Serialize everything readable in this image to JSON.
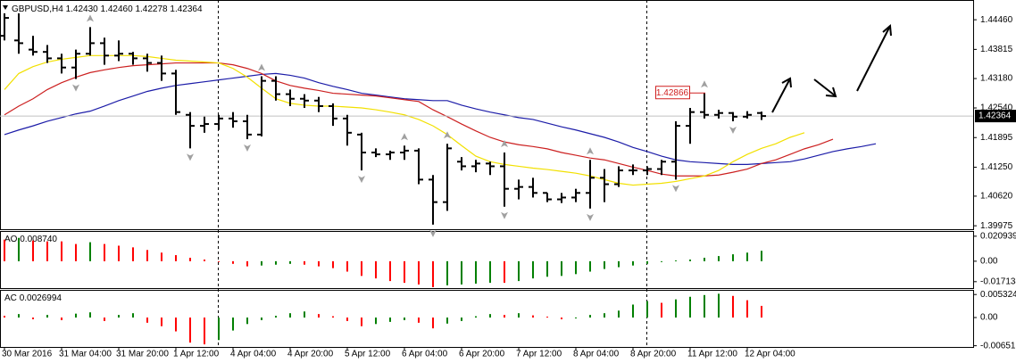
{
  "chart_data": [
    {
      "type": "ohlc",
      "symbol": "GBPUSD,H4",
      "last_labels": {
        "open": "1.42430",
        "high": "1.42460",
        "low": "1.42278",
        "close": "1.42364"
      },
      "categories": [
        "30 Mar 2016",
        null,
        null,
        null,
        "31 Mar 04:00",
        null,
        null,
        null,
        "31 Mar 20:00",
        null,
        null,
        null,
        "1 Apr 12:00",
        null,
        null,
        null,
        "4 Apr 04:00",
        null,
        null,
        null,
        "4 Apr 20:00",
        null,
        null,
        null,
        "5 Apr 12:00",
        null,
        null,
        null,
        "6 Apr 04:00",
        null,
        null,
        null,
        "6 Apr 20:00",
        null,
        null,
        null,
        "7 Apr 12:00",
        null,
        null,
        null,
        "8 Apr 04:00",
        null,
        null,
        null,
        "8 Apr 20:00",
        null,
        null,
        null,
        "11 Apr 12:00",
        null,
        null,
        null,
        "12 Apr 04:00",
        null,
        null,
        null,
        null,
        null,
        null,
        null,
        null,
        null
      ],
      "open": [
        1.4411,
        1.4401,
        1.4381,
        1.4376,
        1.4362,
        1.4342,
        1.4372,
        1.4395,
        1.4368,
        1.4372,
        1.4362,
        1.4352,
        1.4329,
        1.4239,
        1.4215,
        1.4219,
        1.4231,
        1.4225,
        1.4196,
        1.4313,
        1.4284,
        1.4274,
        1.427,
        1.4258,
        1.4231,
        1.4196,
        1.4157,
        1.4153,
        1.4157,
        1.4161,
        1.4098,
        1.4049,
        1.4137,
        1.4127,
        1.4133,
        1.4127,
        1.4078,
        1.4082,
        1.4069,
        1.4055,
        1.4059,
        1.4069,
        1.4102,
        1.4088,
        1.4118,
        1.4118,
        1.4121,
        1.4137,
        1.4215,
        1.4245,
        1.4239,
        1.4243,
        1.4235,
        1.4243,
        null,
        null,
        null,
        null,
        null,
        null,
        null,
        null
      ],
      "high": [
        1.446,
        1.446,
        1.4411,
        1.4391,
        1.4372,
        1.4381,
        1.443,
        1.4407,
        1.4401,
        1.4376,
        1.4372,
        1.4368,
        1.4337,
        1.4245,
        1.4235,
        1.4239,
        1.4245,
        1.4239,
        1.4323,
        1.4323,
        1.4294,
        1.4284,
        1.4278,
        1.4264,
        1.4239,
        1.42,
        1.4166,
        1.4161,
        1.4172,
        1.4166,
        1.4108,
        1.4176,
        1.4147,
        1.4141,
        1.4137,
        1.4157,
        1.4098,
        1.4102,
        1.4069,
        1.4069,
        1.4078,
        1.4141,
        1.4121,
        1.4127,
        1.4131,
        1.4127,
        1.4141,
        1.4225,
        1.4254,
        1.42866,
        1.425,
        1.4245,
        1.4247,
        1.4246,
        null,
        null,
        null,
        null,
        null,
        null,
        null,
        null
      ],
      "low": [
        1.4401,
        1.4372,
        1.4368,
        1.4352,
        1.4329,
        1.4317,
        1.4368,
        1.4348,
        1.4356,
        1.4348,
        1.4333,
        1.4313,
        1.4239,
        1.4166,
        1.42,
        1.4206,
        1.4211,
        1.4186,
        1.4192,
        1.427,
        1.4258,
        1.4254,
        1.4245,
        1.4215,
        1.4172,
        1.4118,
        1.4147,
        1.4141,
        1.4141,
        1.4088,
        1.4,
        1.403,
        1.4118,
        1.4114,
        1.4108,
        1.4039,
        1.4055,
        1.4059,
        1.4049,
        1.4047,
        1.4049,
        1.4035,
        1.4049,
        1.4082,
        1.4108,
        1.4108,
        1.4108,
        1.4098,
        1.4176,
        1.4231,
        1.4231,
        1.4225,
        1.4231,
        1.42278,
        null,
        null,
        null,
        null,
        null,
        null,
        null,
        null
      ],
      "close": [
        1.445,
        1.4395,
        1.4376,
        1.4362,
        1.4342,
        1.4372,
        1.4395,
        1.4368,
        1.4372,
        1.4362,
        1.4352,
        1.4329,
        1.4245,
        1.4215,
        1.4219,
        1.4231,
        1.4225,
        1.4196,
        1.4313,
        1.4284,
        1.4274,
        1.427,
        1.4258,
        1.4231,
        1.42,
        1.4157,
        1.4153,
        1.4157,
        1.4161,
        1.4098,
        1.4049,
        1.4166,
        1.4127,
        1.4133,
        1.4127,
        1.4078,
        1.4082,
        1.4069,
        1.4055,
        1.4059,
        1.4069,
        1.4102,
        1.4088,
        1.4118,
        1.4118,
        1.4121,
        1.4137,
        1.4215,
        1.4245,
        1.4239,
        1.4243,
        1.4235,
        1.4239,
        1.42364,
        null,
        null,
        null,
        null,
        null,
        null,
        null,
        null
      ],
      "color": "#000000",
      "lines": [
        {
          "color": "#1c1ca8",
          "values": [
            1.4196,
            1.4206,
            1.4215,
            1.4225,
            1.4233,
            1.4241,
            1.4247,
            1.4258,
            1.427,
            1.428,
            1.429,
            1.4297,
            1.4303,
            1.4307,
            1.4311,
            1.4315,
            1.4319,
            1.4323,
            1.4327,
            1.4329,
            1.4325,
            1.4319,
            1.4309,
            1.4301,
            1.4294,
            1.4286,
            1.4282,
            1.4278,
            1.4274,
            1.4272,
            1.427,
            1.427,
            1.426,
            1.4252,
            1.4245,
            1.4239,
            1.4233,
            1.4229,
            1.4221,
            1.4213,
            1.4206,
            1.4198,
            1.419,
            1.418,
            1.4168,
            1.4159,
            1.4149,
            1.4141,
            1.4137,
            1.4135,
            1.4133,
            1.4131,
            1.4131,
            1.4133,
            1.4135,
            1.4137,
            1.4143,
            1.4151,
            1.4159,
            1.4165,
            1.417,
            1.4176
          ]
        },
        {
          "color": "#cc2020",
          "values": [
            1.4239,
            1.4258,
            1.4274,
            1.4294,
            1.4309,
            1.4321,
            1.4331,
            1.4337,
            1.4342,
            1.4346,
            1.4348,
            1.435,
            1.4352,
            1.4352,
            1.4352,
            1.4352,
            1.4348,
            1.434,
            1.4329,
            1.4313,
            1.4303,
            1.4297,
            1.4292,
            1.4286,
            1.4284,
            1.4282,
            1.428,
            1.4276,
            1.4272,
            1.4268,
            1.425,
            1.4235,
            1.4219,
            1.4204,
            1.419,
            1.418,
            1.4174,
            1.417,
            1.4165,
            1.4157,
            1.4151,
            1.4145,
            1.4141,
            1.4133,
            1.4125,
            1.4118,
            1.411,
            1.4106,
            1.4106,
            1.4106,
            1.4108,
            1.4114,
            1.4121,
            1.4133,
            1.4141,
            1.4153,
            1.4165,
            1.4174,
            1.4186,
            null,
            null,
            null
          ]
        },
        {
          "color": "#f2e000",
          "values": [
            1.4294,
            1.4329,
            1.4344,
            1.4354,
            1.436,
            1.4364,
            1.4368,
            1.4368,
            1.4368,
            1.4368,
            1.4366,
            1.4362,
            1.4358,
            1.4356,
            1.4354,
            1.4352,
            1.434,
            1.4321,
            1.4297,
            1.4274,
            1.4264,
            1.426,
            1.4258,
            1.4258,
            1.4256,
            1.4254,
            1.425,
            1.4245,
            1.4239,
            1.4229,
            1.4215,
            1.4196,
            1.4172,
            1.4149,
            1.4137,
            1.4131,
            1.4127,
            1.4123,
            1.412,
            1.4116,
            1.4112,
            1.4106,
            1.4098,
            1.409,
            1.4086,
            1.4088,
            1.409,
            1.4094,
            1.41,
            1.4106,
            1.4118,
            1.4137,
            1.4153,
            1.4166,
            1.4176,
            1.419,
            1.42,
            null,
            null,
            null,
            null,
            null
          ]
        }
      ],
      "fractals": {
        "up": [
          6,
          18,
          28,
          31,
          35,
          41,
          49
        ],
        "down": [
          5,
          13,
          17,
          25,
          30,
          35,
          41,
          47,
          51
        ]
      },
      "fractal_color": "#a0a0a0",
      "price_label": 1.42866,
      "price_label_color": "#d02020",
      "ylim": [
        1.399,
        1.4489
      ],
      "yticks": [
        {
          "value": 1.4446,
          "label": "1.44460"
        },
        1.43815,
        {
          "value": 1.4318,
          "label": "1.43180"
        },
        {
          "value": 1.4254,
          "label": "1.42540"
        },
        1.41895,
        {
          "value": 1.4125,
          "label": "1.41250"
        },
        {
          "value": 1.4062,
          "label": "1.40620"
        },
        1.39975
      ]
    },
    {
      "type": "bar",
      "name": "AO",
      "value_label": "0.008740",
      "values": [
        0.0181,
        0.0195,
        0.0173,
        0.0166,
        0.0166,
        0.0144,
        0.0159,
        0.0144,
        0.013,
        0.0116,
        0.0094,
        0.0072,
        0.0051,
        0.0029,
        0.0014,
        -0.0007,
        -0.0022,
        -0.0043,
        -0.0036,
        -0.0029,
        -0.0022,
        -0.0029,
        -0.0043,
        -0.0058,
        -0.0087,
        -0.0123,
        -0.0144,
        -0.0166,
        -0.0181,
        -0.0195,
        -0.0217,
        -0.0202,
        -0.0195,
        -0.0188,
        -0.0181,
        -0.0181,
        -0.0166,
        -0.0144,
        -0.013,
        -0.0123,
        -0.0108,
        -0.0087,
        -0.0065,
        -0.005,
        -0.0036,
        -0.0022,
        -0.0007,
        0.0007,
        0.0014,
        0.0029,
        0.0043,
        0.0058,
        0.0072,
        0.00874,
        null,
        null,
        null,
        null,
        null,
        null,
        null,
        null
      ],
      "up_color": "#008000",
      "down_color": "#ff0000",
      "ylim": [
        -0.0225,
        0.0253
      ],
      "yticks": [
        0.020939,
        {
          "value": 0,
          "label": "0.00"
        },
        -0.017134
      ]
    },
    {
      "type": "bar",
      "name": "AC",
      "values": [
        0.0004,
        0.0008,
        -0.0004,
        0.0006,
        -0.0006,
        0.0009,
        0.0012,
        -0.0008,
        0.0006,
        0.001,
        -0.0012,
        -0.002,
        -0.0032,
        -0.0058,
        -0.0062,
        -0.0052,
        -0.003,
        -0.0015,
        -0.0006,
        0.0004,
        0.001,
        0.0014,
        0.0008,
        0.0003,
        -0.0008,
        -0.002,
        -0.0015,
        -0.001,
        -0.0006,
        -0.0012,
        -0.0025,
        -0.0014,
        -0.0008,
        0.0003,
        0.0008,
        0.0006,
        0.001,
        0.0005,
        0.0002,
        -0.0004,
        -0.0002,
        0.0006,
        0.001,
        0.0016,
        0.003,
        0.0038,
        0.0034,
        0.0042,
        0.0048,
        0.0052,
        0.0055,
        0.005,
        0.004,
        0.0026994,
        null,
        null,
        null,
        null,
        null,
        null,
        null,
        null
      ],
      "up_color": "#008000",
      "down_color": "#ff0000",
      "ylim": [
        -0.0068,
        0.0064
      ],
      "yticks": [
        0.005324,
        {
          "value": 0,
          "label": "0.00"
        },
        -0.006518
      ]
    }
  ]
}
